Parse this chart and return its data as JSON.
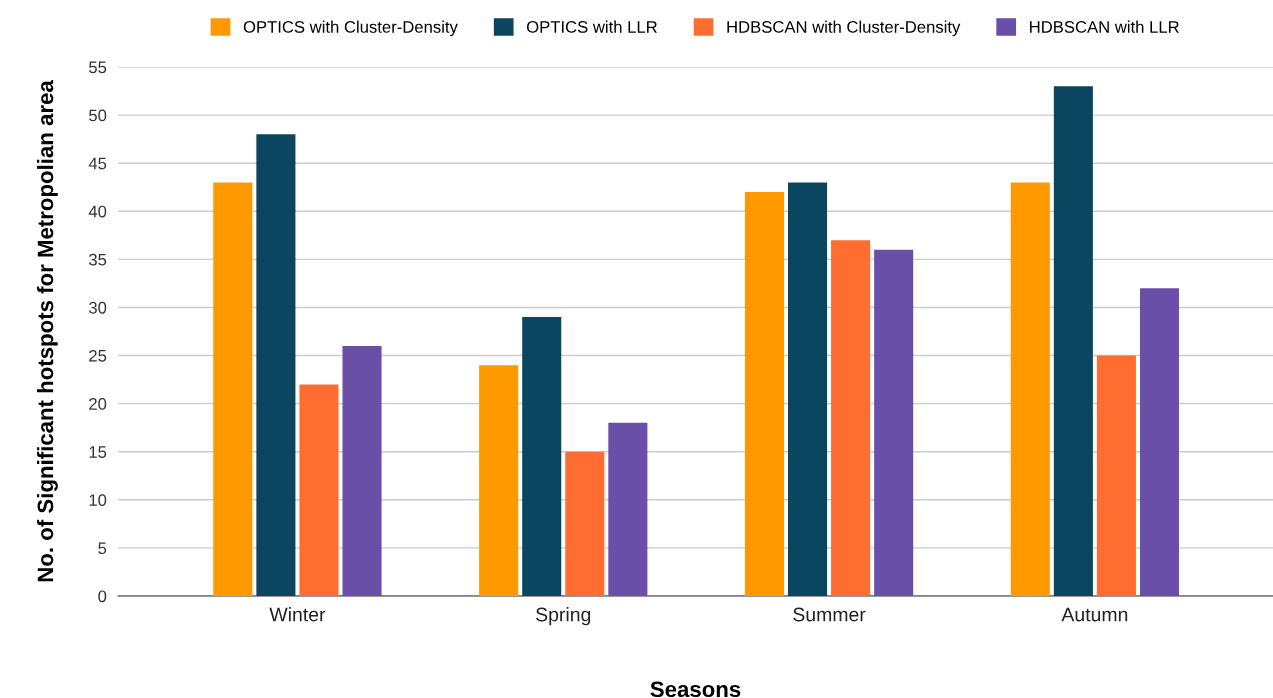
{
  "chart_data": {
    "type": "bar",
    "xlabel": "Seasons",
    "ylabel": "No. of Significant hotspots for Metropolian area",
    "categories": [
      "Winter",
      "Spring",
      "Summer",
      "Autumn"
    ],
    "series": [
      {
        "name": "OPTICS with Cluster-Density",
        "color": "#ff9900",
        "values": [
          43,
          24,
          42,
          43
        ]
      },
      {
        "name": "OPTICS with LLR",
        "color": "#0b4660",
        "values": [
          48,
          29,
          43,
          53
        ]
      },
      {
        "name": "HDBSCAN with Cluster-Density",
        "color": "#ff6d31",
        "values": [
          22,
          15,
          37,
          25
        ]
      },
      {
        "name": "HDBSCAN with LLR",
        "color": "#6a4fa8",
        "values": [
          26,
          18,
          36,
          32
        ]
      }
    ],
    "ylim": [
      0,
      55
    ],
    "yticks": [
      0,
      5,
      10,
      15,
      20,
      25,
      30,
      35,
      40,
      45,
      50,
      55
    ],
    "grid": "y",
    "legend": "top"
  }
}
